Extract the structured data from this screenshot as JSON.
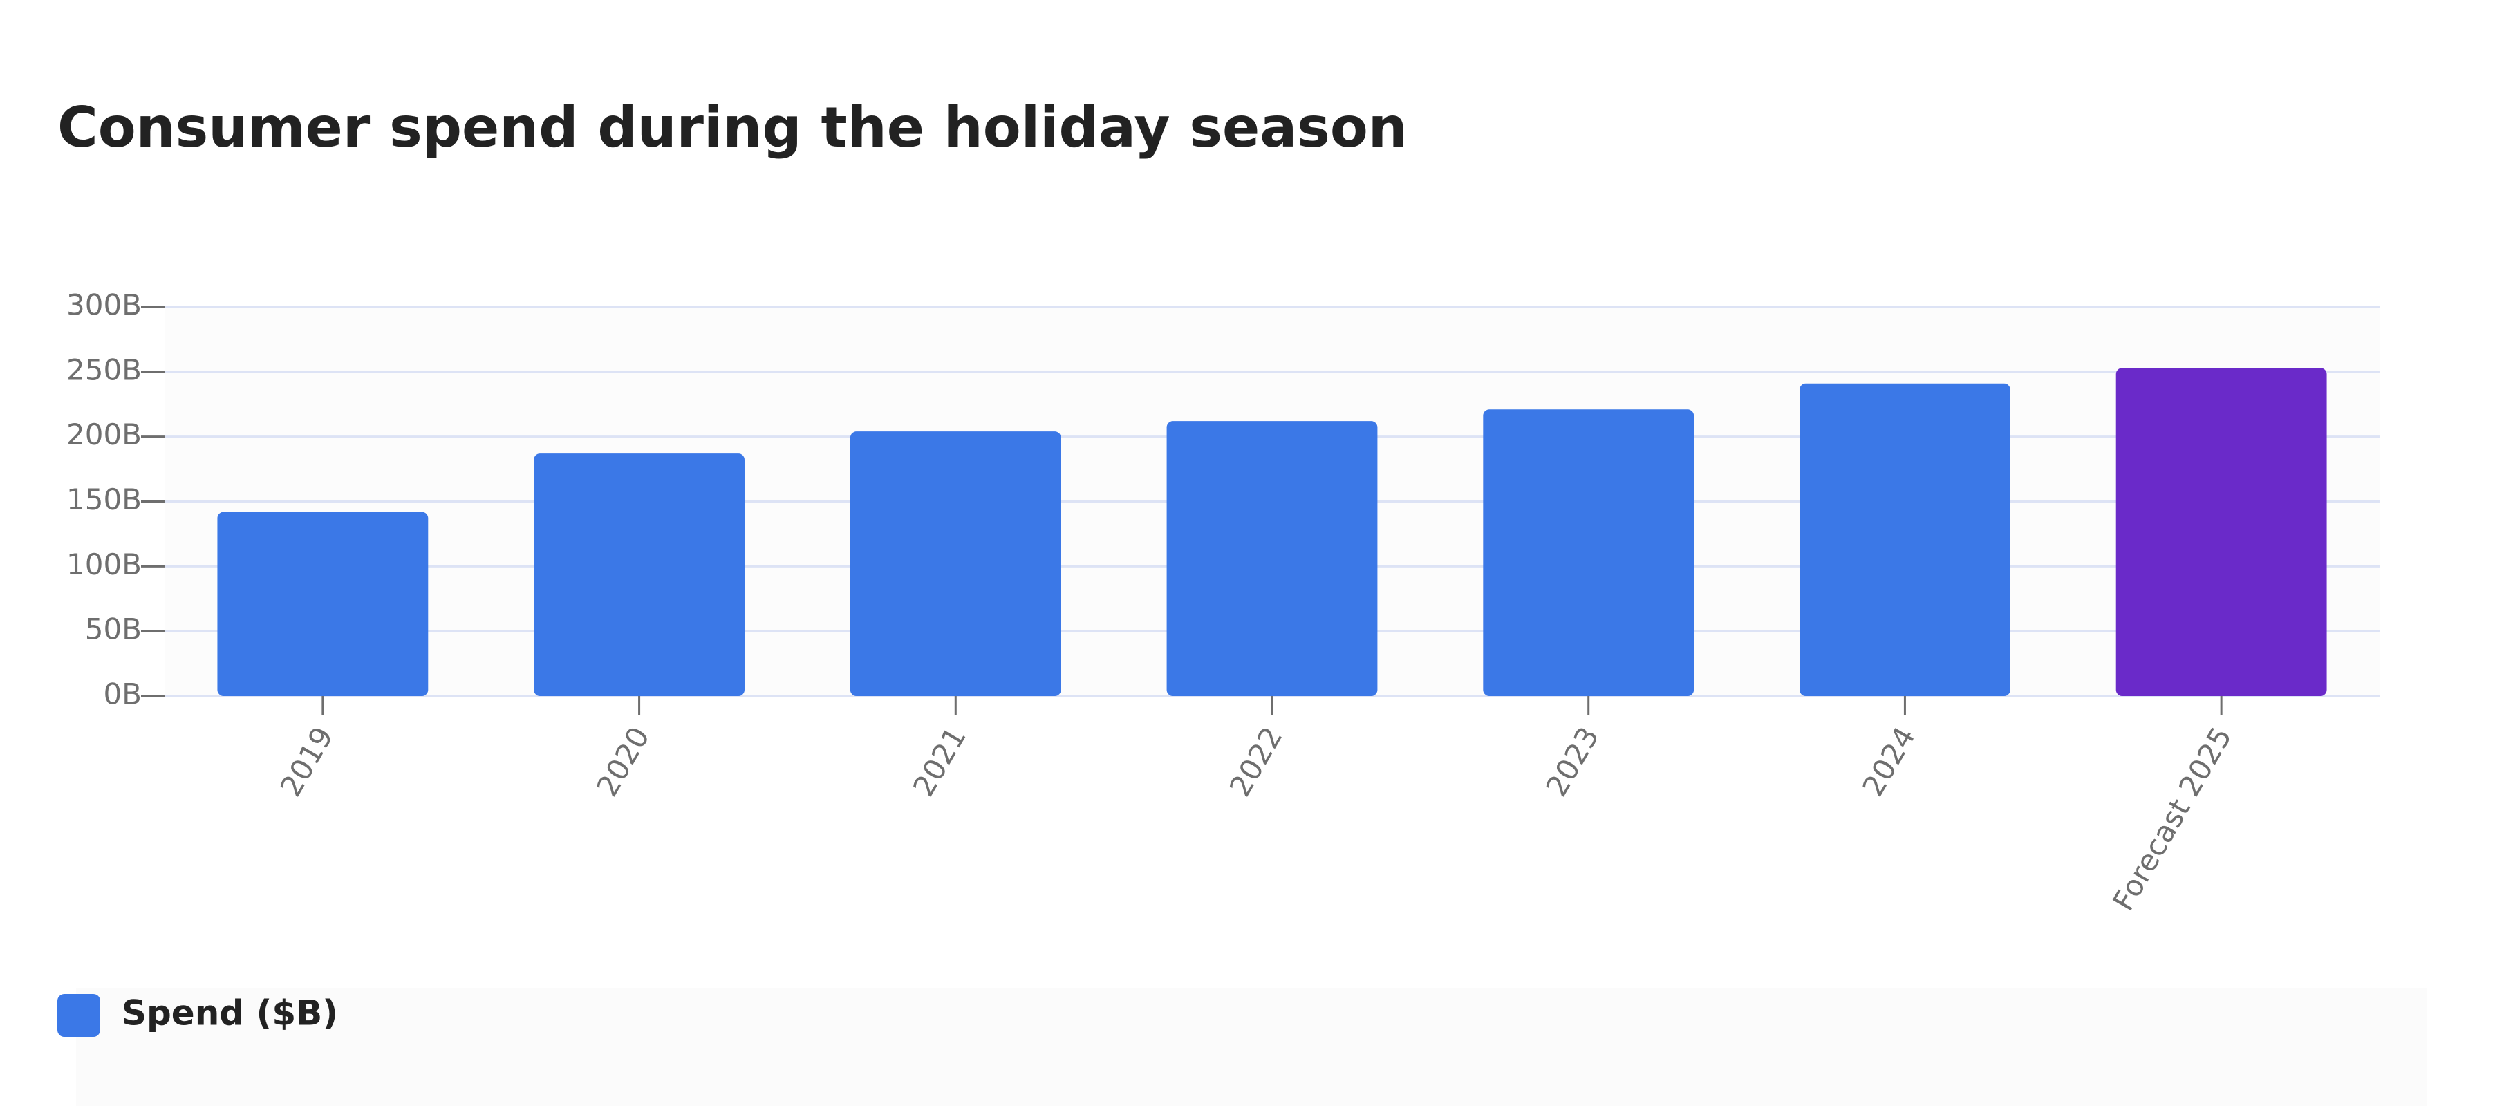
{
  "chart_data": {
    "type": "bar",
    "title": "Consumer spend during the holiday season",
    "categories": [
      "2019",
      "2020",
      "2021",
      "2022",
      "2023",
      "2024",
      "Forecast 2025"
    ],
    "series": [
      {
        "name": "Spend ($B)",
        "color": "#3b78e7",
        "colors": [
          "#3b78e7",
          "#3b78e7",
          "#3b78e7",
          "#3b78e7",
          "#3b78e7",
          "#3b78e7",
          "#6a2ac9"
        ],
        "values": [
          142,
          187,
          204,
          212,
          221,
          241,
          253
        ]
      }
    ],
    "ylim": [
      0,
      300
    ],
    "yticks": [
      {
        "value": 0,
        "label": "0B"
      },
      {
        "value": 50,
        "label": "50B"
      },
      {
        "value": 100,
        "label": "100B"
      },
      {
        "value": 150,
        "label": "150B"
      },
      {
        "value": 200,
        "label": "200B"
      },
      {
        "value": 250,
        "label": "250B"
      },
      {
        "value": 300,
        "label": "300B"
      }
    ],
    "grid": true,
    "legend": "bottom-left"
  }
}
